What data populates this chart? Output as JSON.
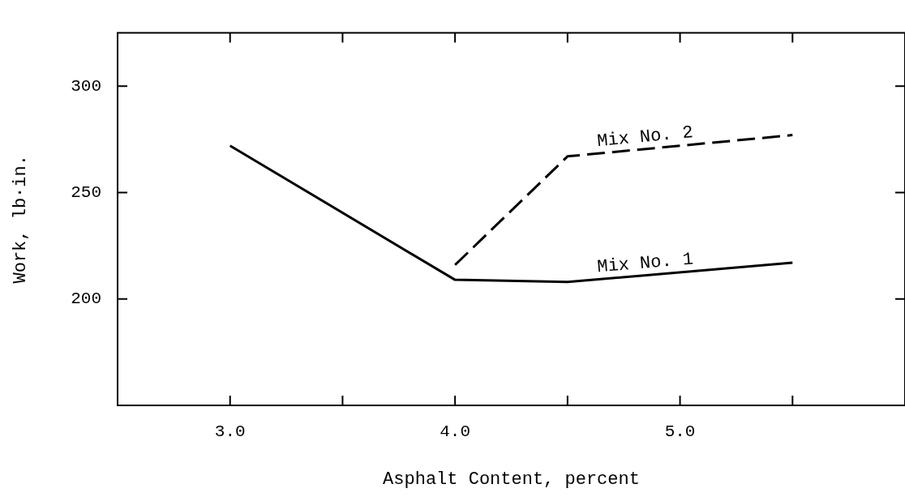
{
  "chart_data": {
    "type": "line",
    "xlabel": "Asphalt Content, percent",
    "ylabel": "Work, lb·in.",
    "xlim": [
      2.5,
      6.0
    ],
    "xticks": [
      {
        "value": 3.0,
        "label": "3.0"
      },
      {
        "value": 3.5,
        "label": null
      },
      {
        "value": 4.0,
        "label": "4.0"
      },
      {
        "value": 4.5,
        "label": null
      },
      {
        "value": 5.0,
        "label": "5.0"
      },
      {
        "value": 5.5,
        "label": null
      }
    ],
    "ylim": [
      150,
      325
    ],
    "yticks": [
      200,
      250,
      300
    ],
    "grid": false,
    "legend": false,
    "marker": "none",
    "series": [
      {
        "name": "Mix No. 1",
        "color": "#000000",
        "line_style": "solid",
        "x": [
          3.0,
          4.0,
          4.5,
          5.5
        ],
        "values": [
          272,
          209,
          208,
          217
        ]
      },
      {
        "name": "Mix No. 2",
        "color": "#000000",
        "line_style": "dashed",
        "x": [
          4.0,
          4.5,
          5.5
        ],
        "values": [
          216,
          267,
          277
        ]
      }
    ]
  }
}
